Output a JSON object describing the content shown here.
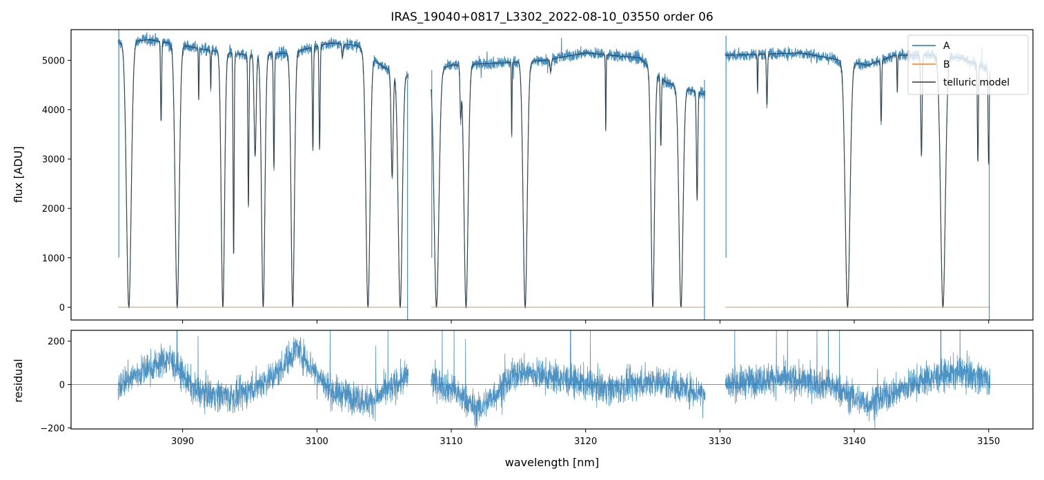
{
  "chart_data": [
    {
      "type": "line",
      "title": "IRAS_19040+0817_L3302_2022-08-10_03550  order 06",
      "xlabel": "",
      "ylabel": "flux [ADU]",
      "xlim": [
        3081.7,
        3153.3
      ],
      "ylim": [
        -260,
        5620
      ],
      "xticks": [
        3090,
        3100,
        3110,
        3120,
        3130,
        3140,
        3150
      ],
      "yticks": [
        0,
        1000,
        2000,
        3000,
        4000,
        5000
      ],
      "legend": {
        "position": "top-right",
        "entries": [
          "A",
          "B",
          "telluric model"
        ]
      },
      "colors": {
        "A": "#1f77b4",
        "B": "#ff7f0e",
        "telluric model": "#333333"
      },
      "segments": [
        {
          "x_range": [
            3085.2,
            3106.8
          ]
        },
        {
          "x_range": [
            3108.5,
            3128.9
          ]
        },
        {
          "x_range": [
            3130.4,
            3150.1
          ]
        }
      ],
      "continuum": [
        [
          3085.2,
          5350
        ],
        [
          3087.5,
          5420
        ],
        [
          3090,
          5300
        ],
        [
          3092,
          5200
        ],
        [
          3095,
          5100
        ],
        [
          3098,
          5150
        ],
        [
          3101,
          5350
        ],
        [
          3103,
          5300
        ],
        [
          3105,
          4850
        ],
        [
          3106.8,
          4700
        ],
        [
          3108.5,
          4750
        ],
        [
          3110,
          4900
        ],
        [
          3114,
          4950
        ],
        [
          3117,
          5000
        ],
        [
          3120,
          5150
        ],
        [
          3124,
          5050
        ],
        [
          3126,
          4550
        ],
        [
          3128.9,
          4300
        ],
        [
          3130.4,
          5100
        ],
        [
          3133,
          5120
        ],
        [
          3136,
          5150
        ],
        [
          3138,
          5050
        ],
        [
          3141,
          4900
        ],
        [
          3143,
          5100
        ],
        [
          3146,
          5100
        ],
        [
          3148,
          5050
        ],
        [
          3150.1,
          4800
        ]
      ],
      "absorption_lines": [
        [
          3086.0,
          1.0,
          0.35
        ],
        [
          3088.4,
          0.3,
          0.08
        ],
        [
          3089.6,
          1.0,
          0.3
        ],
        [
          3091.2,
          0.2,
          0.05
        ],
        [
          3092.1,
          0.15,
          0.05
        ],
        [
          3093.0,
          1.0,
          0.25
        ],
        [
          3093.8,
          0.8,
          0.08
        ],
        [
          3094.9,
          0.6,
          0.08
        ],
        [
          3095.4,
          0.4,
          0.15
        ],
        [
          3096.0,
          1.0,
          0.25
        ],
        [
          3096.8,
          0.45,
          0.08
        ],
        [
          3098.2,
          1.0,
          0.25
        ],
        [
          3099.7,
          0.4,
          0.08
        ],
        [
          3100.2,
          0.4,
          0.08
        ],
        [
          3101.9,
          0.05,
          0.1
        ],
        [
          3103.8,
          1.0,
          0.3
        ],
        [
          3105.6,
          0.45,
          0.15
        ],
        [
          3106.2,
          1.0,
          0.3
        ],
        [
          3108.9,
          1.0,
          0.35
        ],
        [
          3110.7,
          0.2,
          0.1
        ],
        [
          3111.1,
          1.0,
          0.3
        ],
        [
          3115.5,
          1.0,
          0.3
        ],
        [
          3114.5,
          0.3,
          0.05
        ],
        [
          3117.4,
          0.05,
          0.1
        ],
        [
          3121.5,
          0.3,
          0.05
        ],
        [
          3125.0,
          1.0,
          0.25
        ],
        [
          3125.6,
          0.3,
          0.08
        ],
        [
          3127.1,
          1.0,
          0.3
        ],
        [
          3128.3,
          0.5,
          0.1
        ],
        [
          3132.8,
          0.15,
          0.05
        ],
        [
          3133.5,
          0.2,
          0.08
        ],
        [
          3139.5,
          1.0,
          0.35
        ],
        [
          3142.0,
          0.25,
          0.08
        ],
        [
          3143.2,
          0.15,
          0.05
        ],
        [
          3145.0,
          0.4,
          0.1
        ],
        [
          3146.6,
          1.0,
          0.35
        ],
        [
          3149.2,
          0.4,
          0.08
        ],
        [
          3150.0,
          0.4,
          0.08
        ]
      ],
      "series": [
        {
          "name": "A"
        },
        {
          "name": "B",
          "y": 0
        },
        {
          "name": "telluric model"
        }
      ]
    },
    {
      "type": "line",
      "title": "",
      "xlabel": "wavelength [nm]",
      "ylabel": "residual",
      "xlim": [
        3081.7,
        3153.3
      ],
      "ylim": [
        -205,
        250
      ],
      "xticks": [
        3090,
        3100,
        3110,
        3120,
        3130,
        3140,
        3150
      ],
      "yticks": [
        -200,
        0,
        200
      ],
      "reference_line": 0,
      "residual_level": [
        [
          3085.2,
          0
        ],
        [
          3087,
          60
        ],
        [
          3089,
          120
        ],
        [
          3091,
          -30
        ],
        [
          3094,
          -60
        ],
        [
          3097,
          50
        ],
        [
          3098.5,
          170
        ],
        [
          3101,
          -30
        ],
        [
          3104,
          -80
        ],
        [
          3106.8,
          40
        ],
        [
          3108.5,
          20
        ],
        [
          3110,
          -20
        ],
        [
          3112,
          -120
        ],
        [
          3115,
          60
        ],
        [
          3118,
          30
        ],
        [
          3122,
          -20
        ],
        [
          3125,
          20
        ],
        [
          3128.9,
          -40
        ],
        [
          3130.4,
          0
        ],
        [
          3134,
          30
        ],
        [
          3138,
          0
        ],
        [
          3141,
          -90
        ],
        [
          3145,
          20
        ],
        [
          3148,
          60
        ],
        [
          3150.1,
          20
        ]
      ],
      "residual_scatter": 75,
      "series": [
        {
          "name": "residual"
        }
      ]
    }
  ]
}
